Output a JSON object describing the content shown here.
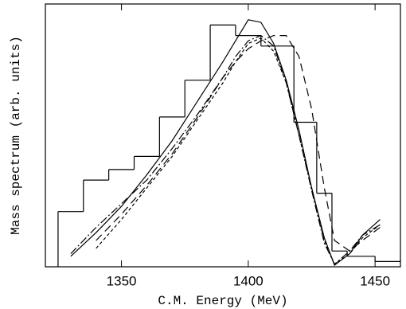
{
  "chart_data": {
    "type": "line",
    "x_label": "C.M. Energy (MeV)",
    "y_label": "Mass spectrum (arb. units)",
    "xlim": [
      1320,
      1460
    ],
    "ylim": [
      0,
      1
    ],
    "xticks": [
      1350,
      1400,
      1450
    ],
    "histogram": {
      "color": "#000",
      "bins": [
        1325,
        1335,
        1345,
        1355,
        1365,
        1375,
        1385,
        1395,
        1405,
        1418,
        1427,
        1433,
        1439,
        1450,
        1460
      ],
      "values": [
        0.21,
        0.33,
        0.37,
        0.42,
        0.57,
        0.71,
        0.92,
        0.88,
        0.84,
        0.55,
        0.28,
        0.06,
        0.04,
        0.02
      ]
    },
    "x": [
      1330,
      1340,
      1350,
      1360,
      1370,
      1380,
      1390,
      1395,
      1400,
      1405,
      1410,
      1415,
      1420,
      1425,
      1430,
      1434,
      1440,
      1445,
      1452
    ],
    "series": [
      {
        "color": "#000",
        "dash": "none",
        "values": [
          0.04,
          0.13,
          0.23,
          0.35,
          0.48,
          0.63,
          0.78,
          0.86,
          0.94,
          0.93,
          0.85,
          0.71,
          0.52,
          0.3,
          0.11,
          0.006,
          0.05,
          0.12,
          0.18
        ]
      },
      {
        "color": "#000",
        "dash": "4 3",
        "values": [
          null,
          0.07,
          0.18,
          0.3,
          0.42,
          0.56,
          0.7,
          0.78,
          0.85,
          0.87,
          0.82,
          0.7,
          0.5,
          0.3,
          0.1,
          0.01,
          0.05,
          0.11,
          0.16
        ]
      },
      {
        "color": "#000",
        "dash": "10 3 2 3",
        "values": [
          0.05,
          0.15,
          0.24,
          0.33,
          0.45,
          0.58,
          0.72,
          0.8,
          0.86,
          0.88,
          0.84,
          0.7,
          0.5,
          0.29,
          0.09,
          0.01,
          0.06,
          0.12,
          0.16
        ]
      },
      {
        "color": "#000",
        "dash": "10 6",
        "values": [
          null,
          0.1,
          0.2,
          0.31,
          0.43,
          0.57,
          0.72,
          0.78,
          0.83,
          0.86,
          0.88,
          0.88,
          0.8,
          0.6,
          0.3,
          0.1,
          0.06,
          0.1,
          0.15
        ]
      }
    ]
  }
}
